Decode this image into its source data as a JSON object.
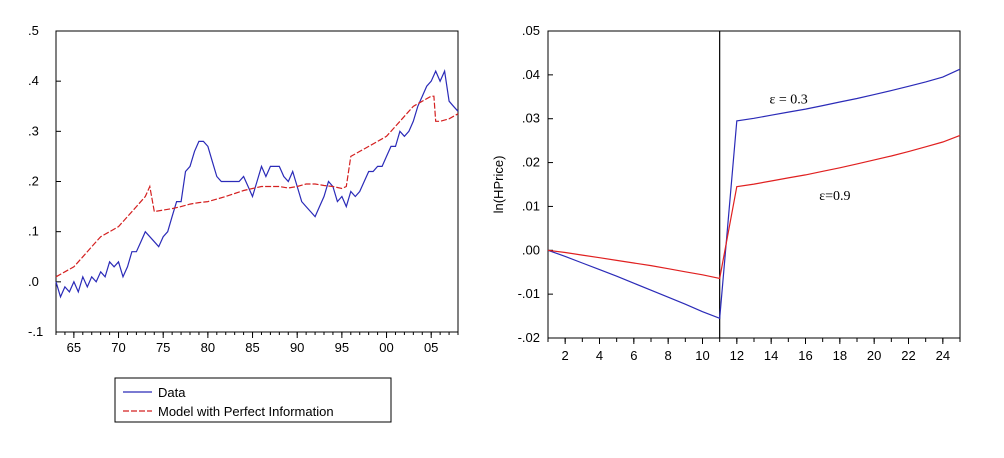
{
  "chart_data": [
    {
      "type": "line",
      "title": "",
      "xlabel": "",
      "ylabel": "",
      "xlim": [
        1963,
        2008
      ],
      "ylim": [
        -0.1,
        0.5
      ],
      "x_ticks": [
        65,
        70,
        75,
        80,
        85,
        90,
        95,
        0,
        5
      ],
      "x_tick_labels": [
        "65",
        "70",
        "75",
        "80",
        "85",
        "90",
        "95",
        "00",
        "05"
      ],
      "y_ticks": [
        -0.1,
        0.0,
        0.1,
        0.2,
        0.3,
        0.4,
        0.5
      ],
      "y_tick_labels": [
        "-.1",
        ".0",
        ".1",
        ".2",
        ".3",
        ".4",
        ".5"
      ],
      "grid": false,
      "legend": {
        "placement": "below",
        "entries": [
          "Data",
          "Model with Perfect Information"
        ]
      },
      "series": [
        {
          "name": "Data",
          "color": "#2b2bb8",
          "style": "solid",
          "x": [
            1963,
            1963.5,
            1964,
            1964.5,
            1965,
            1965.5,
            1966,
            1966.5,
            1967,
            1967.5,
            1968,
            1968.5,
            1969,
            1969.5,
            1970,
            1970.5,
            1971,
            1971.5,
            1972,
            1972.5,
            1973,
            1973.5,
            1974,
            1974.5,
            1975,
            1975.5,
            1976,
            1976.5,
            1977,
            1977.5,
            1978,
            1978.5,
            1979,
            1979.5,
            1980,
            1980.5,
            1981,
            1981.5,
            1982,
            1982.5,
            1983,
            1983.5,
            1984,
            1984.5,
            1985,
            1985.5,
            1986,
            1986.5,
            1987,
            1987.5,
            1988,
            1988.5,
            1989,
            1989.5,
            1990,
            1990.5,
            1991,
            1991.5,
            1992,
            1992.5,
            1993,
            1993.5,
            1994,
            1994.5,
            1995,
            1995.5,
            1996,
            1996.5,
            1997,
            1997.5,
            1998,
            1998.5,
            1999,
            1999.5,
            2000,
            2000.5,
            2001,
            2001.5,
            2002,
            2002.5,
            2003,
            2003.5,
            2004,
            2004.5,
            2005,
            2005.5,
            2006,
            2006.5,
            2007,
            2007.5,
            2008
          ],
          "y": [
            0.0,
            -0.03,
            -0.01,
            -0.02,
            0.0,
            -0.02,
            0.01,
            -0.01,
            0.01,
            0.0,
            0.02,
            0.01,
            0.04,
            0.03,
            0.04,
            0.01,
            0.03,
            0.06,
            0.06,
            0.08,
            0.1,
            0.09,
            0.08,
            0.07,
            0.09,
            0.1,
            0.13,
            0.16,
            0.16,
            0.22,
            0.23,
            0.26,
            0.28,
            0.28,
            0.27,
            0.24,
            0.21,
            0.2,
            0.2,
            0.2,
            0.2,
            0.2,
            0.21,
            0.19,
            0.17,
            0.2,
            0.23,
            0.21,
            0.23,
            0.23,
            0.23,
            0.21,
            0.2,
            0.22,
            0.19,
            0.16,
            0.15,
            0.14,
            0.13,
            0.15,
            0.17,
            0.2,
            0.19,
            0.16,
            0.17,
            0.15,
            0.18,
            0.17,
            0.18,
            0.2,
            0.22,
            0.22,
            0.23,
            0.23,
            0.25,
            0.27,
            0.27,
            0.3,
            0.29,
            0.3,
            0.32,
            0.35,
            0.37,
            0.39,
            0.4,
            0.42,
            0.4,
            0.42,
            0.36,
            0.35,
            0.34
          ]
        },
        {
          "name": "Model with Perfect Information",
          "color": "#d42020",
          "style": "dashed",
          "x": [
            1963,
            1964,
            1965,
            1966,
            1967,
            1968,
            1969,
            1970,
            1971,
            1972,
            1973,
            1973.5,
            1974,
            1975,
            1976,
            1977,
            1978,
            1979,
            1980,
            1981,
            1982,
            1983,
            1984,
            1985,
            1986,
            1987,
            1988,
            1989,
            1990,
            1991,
            1992,
            1993,
            1994,
            1995,
            1995.5,
            1996,
            1997,
            1998,
            1999,
            2000,
            2001,
            2002,
            2003,
            2004,
            2005,
            2005.3,
            2005.5,
            2006,
            2007,
            2008
          ],
          "y": [
            0.01,
            0.02,
            0.03,
            0.05,
            0.07,
            0.09,
            0.1,
            0.11,
            0.13,
            0.15,
            0.17,
            0.19,
            0.14,
            0.143,
            0.146,
            0.15,
            0.155,
            0.158,
            0.16,
            0.165,
            0.17,
            0.176,
            0.182,
            0.186,
            0.19,
            0.19,
            0.19,
            0.187,
            0.19,
            0.195,
            0.195,
            0.192,
            0.19,
            0.186,
            0.19,
            0.25,
            0.26,
            0.27,
            0.28,
            0.29,
            0.31,
            0.33,
            0.35,
            0.36,
            0.37,
            0.37,
            0.32,
            0.32,
            0.325,
            0.335
          ]
        }
      ]
    },
    {
      "type": "line",
      "title": "",
      "xlabel": "",
      "ylabel": "ln(HPrice)",
      "xlim": [
        1,
        25
      ],
      "ylim": [
        -0.02,
        0.05
      ],
      "x_ticks": [
        2,
        4,
        6,
        8,
        10,
        12,
        14,
        16,
        18,
        20,
        22,
        24
      ],
      "y_ticks": [
        -0.02,
        -0.01,
        0.0,
        0.01,
        0.02,
        0.03,
        0.04,
        0.05
      ],
      "y_tick_labels": [
        "-.02",
        "-.01",
        ".00",
        ".01",
        ".02",
        ".03",
        ".04",
        ".05"
      ],
      "vertical_line_x": 11,
      "grid": false,
      "annotations": [
        {
          "text": "ε = 0.3",
          "x": 13.9,
          "y": 0.0335
        },
        {
          "text": "ε=0.9",
          "x": 16.8,
          "y": 0.0115
        }
      ],
      "series": [
        {
          "name": "ε = 0.3",
          "color": "#2b2bb8",
          "style": "solid",
          "x": [
            1,
            2,
            3,
            4,
            5,
            6,
            7,
            8,
            9,
            10,
            11,
            12,
            13,
            14,
            15,
            16,
            17,
            18,
            19,
            20,
            21,
            22,
            23,
            24,
            25
          ],
          "y": [
            0.0,
            -0.0014,
            -0.0029,
            -0.0044,
            -0.0059,
            -0.0075,
            -0.0091,
            -0.0107,
            -0.0123,
            -0.014,
            -0.0155,
            0.0295,
            0.0301,
            0.0308,
            0.0315,
            0.0322,
            0.033,
            0.0338,
            0.0346,
            0.0355,
            0.0364,
            0.0374,
            0.0384,
            0.0395,
            0.0413
          ]
        },
        {
          "name": "ε=0.9",
          "color": "#e02020",
          "style": "solid",
          "x": [
            1,
            2,
            3,
            4,
            5,
            6,
            7,
            8,
            9,
            10,
            11,
            12,
            13,
            14,
            15,
            16,
            17,
            18,
            19,
            20,
            21,
            22,
            23,
            24,
            25
          ],
          "y": [
            0.0,
            -0.0005,
            -0.0011,
            -0.0017,
            -0.0023,
            -0.0029,
            -0.0035,
            -0.0042,
            -0.0049,
            -0.0056,
            -0.0064,
            0.0145,
            0.0151,
            0.0158,
            0.0165,
            0.0172,
            0.018,
            0.0188,
            0.0197,
            0.0206,
            0.0215,
            0.0225,
            0.0236,
            0.0247,
            0.0262
          ]
        }
      ]
    }
  ]
}
